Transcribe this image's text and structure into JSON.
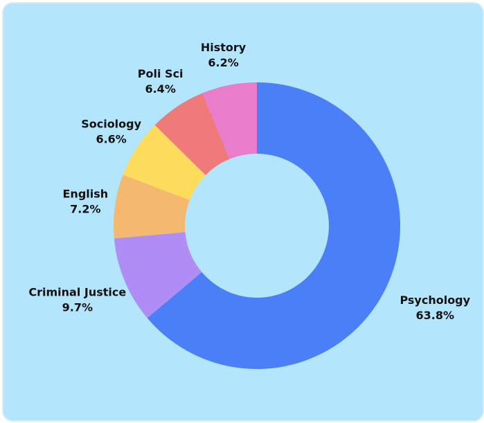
{
  "chart_data": {
    "type": "donut",
    "categories": [
      "Psychology",
      "Criminal Justice",
      "English",
      "Sociology",
      "Poli Sci",
      "History"
    ],
    "values": [
      63.8,
      9.7,
      7.2,
      6.6,
      6.4,
      6.2
    ],
    "value_labels": [
      "63.8%",
      "9.7%",
      "7.2%",
      "6.6%",
      "6.4%",
      "6.2%"
    ],
    "colors": [
      "#4a7ff7",
      "#b08cf5",
      "#f4b86e",
      "#fddb5c",
      "#f07a7a",
      "#ea7ccc"
    ]
  }
}
